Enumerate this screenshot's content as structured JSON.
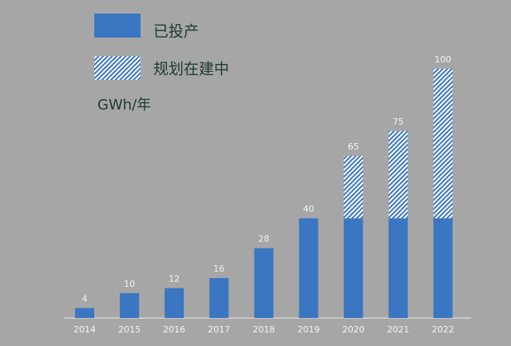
{
  "chart_data": {
    "type": "stacked-bar",
    "y_label": "GWh/年",
    "categories": [
      "2014",
      "2015",
      "2016",
      "2017",
      "2018",
      "2019",
      "2020",
      "2021",
      "2022"
    ],
    "series": [
      {
        "name": "已投产",
        "color": "#3a76c2",
        "values": [
          4,
          10,
          12,
          16,
          28,
          40,
          40,
          40,
          40
        ]
      },
      {
        "name": "规划在建中",
        "color": "#3a76c2",
        "pattern": "hatch",
        "values": [
          null,
          null,
          null,
          null,
          null,
          null,
          25,
          35,
          60
        ]
      }
    ],
    "total_labels": [
      4,
      10,
      12,
      16,
      28,
      40,
      65,
      75,
      100
    ]
  }
}
